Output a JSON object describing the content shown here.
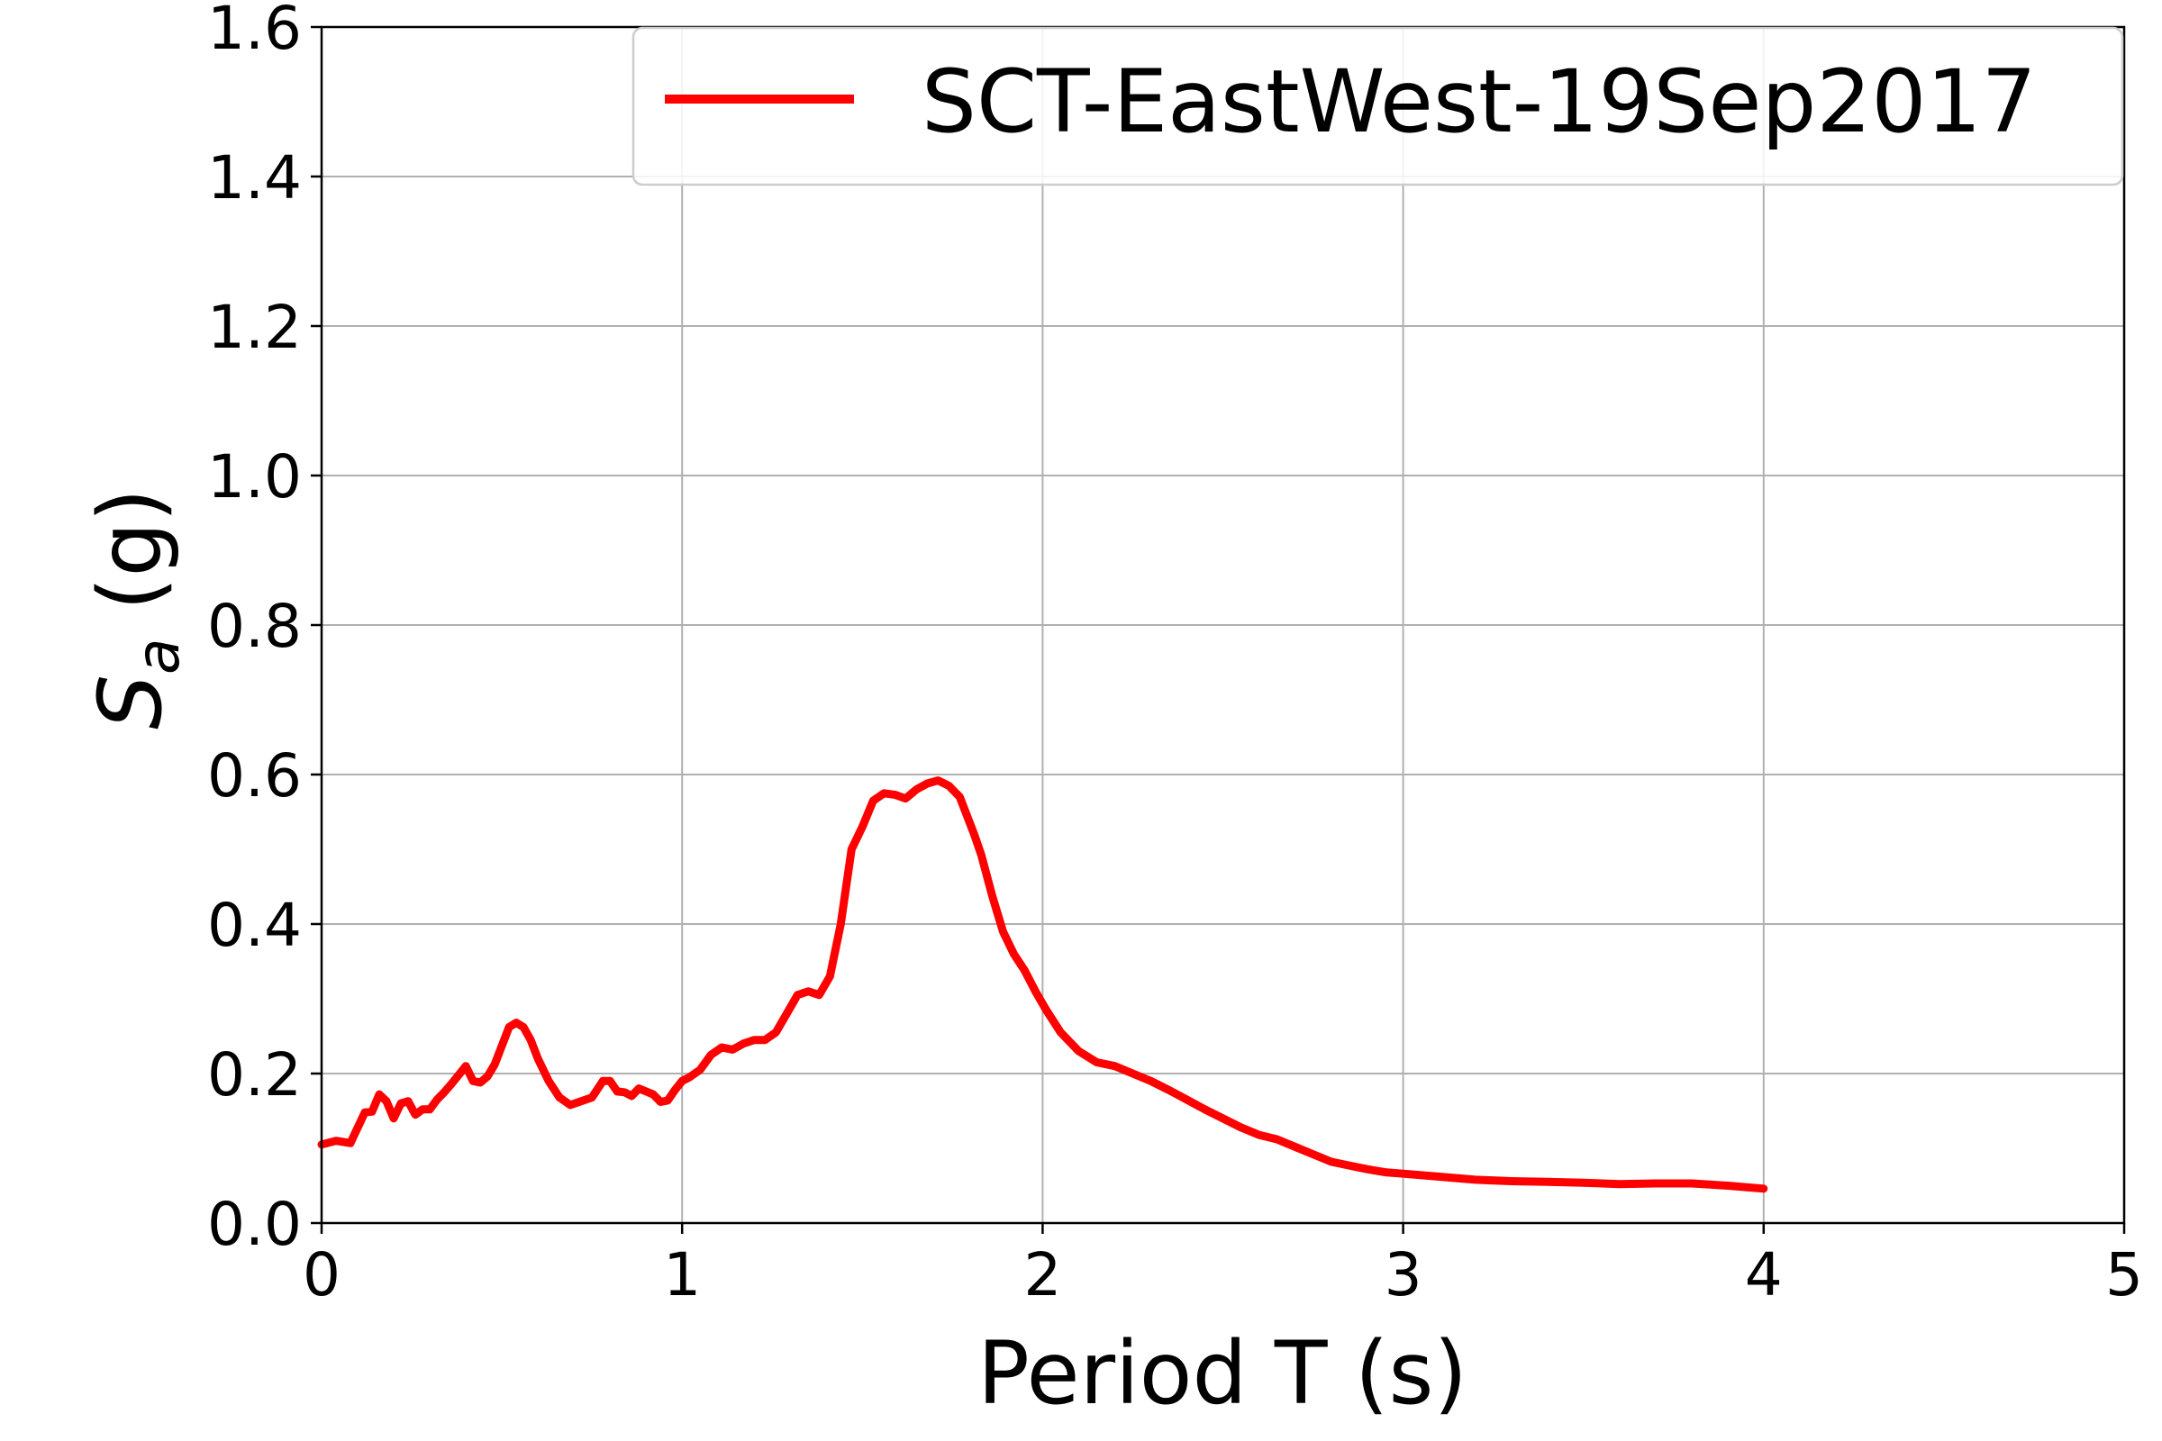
{
  "chart_data": {
    "type": "line",
    "xlabel": "Period T (s)",
    "ylabel": "S",
    "ylabel_subscript": "a",
    "ylabel_unit": " (g)",
    "xlim": [
      0,
      5
    ],
    "ylim": [
      0,
      1.6
    ],
    "xticks": [
      0,
      1,
      2,
      3,
      4,
      5
    ],
    "xtick_labels": [
      "0",
      "1",
      "2",
      "3",
      "4",
      "5"
    ],
    "yticks": [
      0,
      0.2,
      0.4,
      0.6,
      0.8,
      1.0,
      1.2,
      1.4,
      1.6
    ],
    "ytick_labels": [
      "0.0",
      "0.2",
      "0.4",
      "0.6",
      "0.8",
      "1.0",
      "1.2",
      "1.4",
      "1.6"
    ],
    "grid": true,
    "legend_position": "top-right",
    "series": [
      {
        "name": "SCT-EastWest-19Sep2017",
        "color": "#ff0000",
        "x": [
          0,
          0.04,
          0.08,
          0.12,
          0.14,
          0.16,
          0.18,
          0.2,
          0.22,
          0.24,
          0.26,
          0.28,
          0.3,
          0.32,
          0.34,
          0.36,
          0.38,
          0.4,
          0.42,
          0.44,
          0.46,
          0.48,
          0.5,
          0.52,
          0.54,
          0.56,
          0.58,
          0.6,
          0.63,
          0.66,
          0.69,
          0.72,
          0.75,
          0.78,
          0.8,
          0.82,
          0.84,
          0.86,
          0.88,
          0.9,
          0.92,
          0.94,
          0.96,
          0.98,
          1.0,
          1.02,
          1.05,
          1.08,
          1.11,
          1.14,
          1.17,
          1.2,
          1.23,
          1.26,
          1.29,
          1.32,
          1.35,
          1.38,
          1.41,
          1.44,
          1.47,
          1.5,
          1.53,
          1.56,
          1.59,
          1.62,
          1.65,
          1.68,
          1.71,
          1.74,
          1.77,
          1.79,
          1.81,
          1.83,
          1.86,
          1.89,
          1.92,
          1.95,
          1.98,
          2.01,
          2.05,
          2.1,
          2.15,
          2.2,
          2.25,
          2.3,
          2.35,
          2.4,
          2.45,
          2.5,
          2.55,
          2.6,
          2.65,
          2.7,
          2.75,
          2.8,
          2.85,
          2.9,
          2.95,
          3.0,
          3.1,
          3.2,
          3.3,
          3.4,
          3.5,
          3.6,
          3.7,
          3.8,
          3.9,
          4.0
        ],
        "y": [
          0.105,
          0.11,
          0.107,
          0.148,
          0.149,
          0.172,
          0.163,
          0.14,
          0.16,
          0.163,
          0.145,
          0.152,
          0.152,
          0.165,
          0.175,
          0.186,
          0.198,
          0.21,
          0.19,
          0.188,
          0.196,
          0.212,
          0.237,
          0.262,
          0.268,
          0.262,
          0.245,
          0.22,
          0.19,
          0.168,
          0.158,
          0.163,
          0.168,
          0.19,
          0.19,
          0.176,
          0.175,
          0.17,
          0.18,
          0.176,
          0.172,
          0.162,
          0.164,
          0.178,
          0.19,
          0.195,
          0.205,
          0.225,
          0.235,
          0.232,
          0.24,
          0.245,
          0.245,
          0.255,
          0.28,
          0.305,
          0.31,
          0.305,
          0.33,
          0.4,
          0.5,
          0.53,
          0.565,
          0.575,
          0.573,
          0.568,
          0.58,
          0.588,
          0.592,
          0.585,
          0.57,
          0.545,
          0.52,
          0.492,
          0.438,
          0.39,
          0.36,
          0.338,
          0.31,
          0.285,
          0.255,
          0.23,
          0.215,
          0.21,
          0.2,
          0.19,
          0.178,
          0.165,
          0.152,
          0.14,
          0.128,
          0.118,
          0.112,
          0.102,
          0.092,
          0.082,
          0.077,
          0.072,
          0.068,
          0.066,
          0.062,
          0.058,
          0.056,
          0.055,
          0.054,
          0.052,
          0.053,
          0.053,
          0.05,
          0.046
        ]
      }
    ]
  }
}
